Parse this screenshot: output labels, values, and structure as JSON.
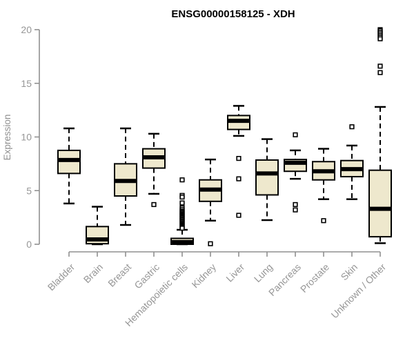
{
  "title": "ENSG00000158125 - XDH",
  "colors": {
    "box_fill": "#EEE8CD",
    "box_stroke": "#000000",
    "median": "#000000",
    "axis": "#8f8f8f",
    "tick_label": "#969696",
    "title": "#000000",
    "background": "#ffffff"
  },
  "chart_data": {
    "type": "boxplot",
    "title": "ENSG00000158125 - XDH",
    "xlabel": "",
    "ylabel": "Expression",
    "ylim": [
      0,
      20
    ],
    "yticks": [
      0,
      5,
      10,
      15,
      20
    ],
    "grid": false,
    "legend": "none",
    "categories": [
      "Bladder",
      "Brain",
      "Breast",
      "Gastric",
      "Hematopoietic cells",
      "Kidney",
      "Liver",
      "Lung",
      "Pancreas",
      "Prostate",
      "Skin",
      "Unknown / Other"
    ],
    "series": [
      {
        "name": "Bladder",
        "whisker_low": 3.8,
        "q1": 6.6,
        "median": 7.85,
        "q3": 8.75,
        "whisker_high": 10.8,
        "outliers": []
      },
      {
        "name": "Brain",
        "whisker_low": 0.0,
        "q1": 0.05,
        "median": 0.45,
        "q3": 1.65,
        "whisker_high": 3.5,
        "outliers": []
      },
      {
        "name": "Breast",
        "whisker_low": 1.8,
        "q1": 4.5,
        "median": 5.9,
        "q3": 7.5,
        "whisker_high": 10.8,
        "outliers": []
      },
      {
        "name": "Gastric",
        "whisker_low": 4.7,
        "q1": 7.1,
        "median": 8.1,
        "q3": 8.9,
        "whisker_high": 10.3,
        "outliers": [
          3.7
        ]
      },
      {
        "name": "Hematopoietic cells",
        "whisker_low": 0.0,
        "q1": 0.0,
        "median": 0.2,
        "q3": 0.55,
        "whisker_high": 1.35,
        "outliers": [
          6.0,
          4.55,
          4.4,
          3.85,
          3.4,
          3.25,
          3.1,
          3.0,
          2.9,
          2.8,
          2.7,
          2.6,
          2.5,
          2.4,
          2.3,
          2.2,
          2.1,
          2.0,
          1.9,
          1.8,
          1.7,
          1.6,
          1.5
        ]
      },
      {
        "name": "Kidney",
        "whisker_low": 2.2,
        "q1": 4.0,
        "median": 5.1,
        "q3": 6.0,
        "whisker_high": 7.9,
        "outliers": [
          0.05
        ]
      },
      {
        "name": "Liver",
        "whisker_low": 10.1,
        "q1": 10.7,
        "median": 11.5,
        "q3": 12.0,
        "whisker_high": 12.9,
        "outliers": [
          8.0,
          6.1,
          2.7
        ]
      },
      {
        "name": "Lung",
        "whisker_low": 2.25,
        "q1": 4.6,
        "median": 6.6,
        "q3": 7.85,
        "whisker_high": 9.8,
        "outliers": []
      },
      {
        "name": "Pancreas",
        "whisker_low": 6.1,
        "q1": 6.8,
        "median": 7.6,
        "q3": 7.9,
        "whisker_high": 8.75,
        "outliers": [
          10.2,
          3.7,
          3.2
        ]
      },
      {
        "name": "Prostate",
        "whisker_low": 4.2,
        "q1": 6.0,
        "median": 6.8,
        "q3": 7.7,
        "whisker_high": 8.9,
        "outliers": [
          2.2
        ]
      },
      {
        "name": "Skin",
        "whisker_low": 4.2,
        "q1": 6.3,
        "median": 7.0,
        "q3": 7.8,
        "whisker_high": 9.2,
        "outliers": [
          10.95
        ]
      },
      {
        "name": "Unknown / Other",
        "whisker_low": 0.1,
        "q1": 0.7,
        "median": 3.3,
        "q3": 6.9,
        "whisker_high": 12.8,
        "outliers": [
          20.0,
          19.9,
          19.75,
          19.6,
          19.45,
          19.3,
          19.15,
          16.6,
          16.0
        ]
      }
    ]
  }
}
